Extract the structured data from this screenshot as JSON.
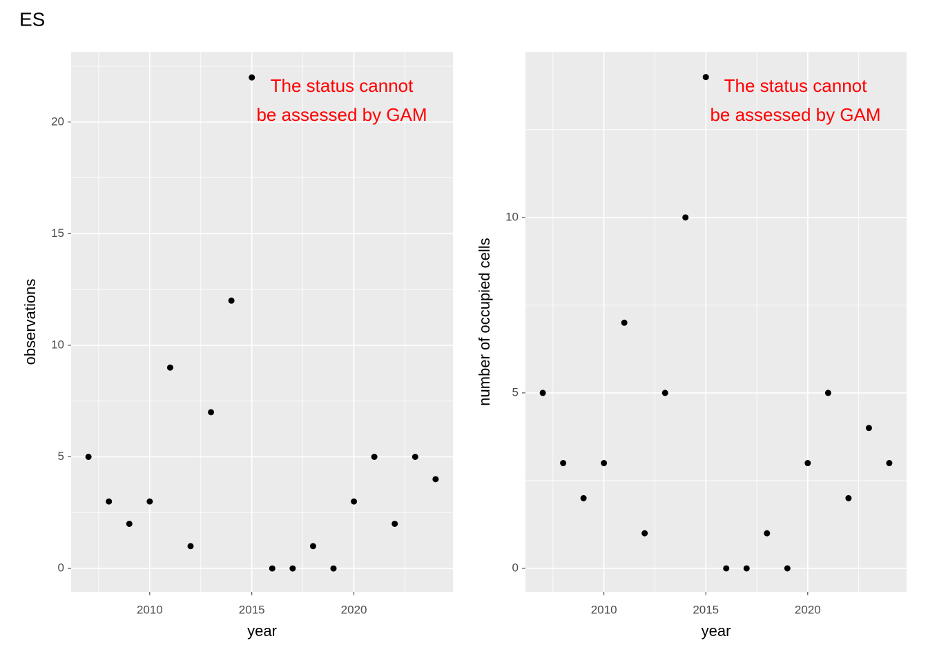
{
  "title": "ES",
  "chart_data": [
    {
      "type": "scatter",
      "x_label": "year",
      "y_label": "observations",
      "x": [
        2007,
        2008,
        2009,
        2010,
        2011,
        2012,
        2013,
        2014,
        2015,
        2016,
        2017,
        2018,
        2019,
        2020,
        2021,
        2022,
        2023,
        2024
      ],
      "values": [
        5,
        3,
        2,
        3,
        9,
        1,
        7,
        12,
        22,
        0,
        0,
        1,
        0,
        3,
        5,
        2,
        5,
        4
      ],
      "color": "#000000",
      "xlim": [
        2006.15,
        2024.85
      ],
      "xticks": [
        2010,
        2015,
        2020
      ],
      "ylim": [
        -1.05,
        23.15
      ],
      "yticks": [
        0,
        5,
        10,
        15,
        20
      ],
      "grid": true,
      "annotation": {
        "lines": [
          "The status cannot",
          "be assessed by GAM"
        ],
        "color": "#ff0000"
      }
    },
    {
      "type": "scatter",
      "x_label": "year",
      "y_label": "number of occupied cells",
      "x": [
        2007,
        2008,
        2009,
        2010,
        2011,
        2012,
        2013,
        2014,
        2015,
        2016,
        2017,
        2018,
        2019,
        2020,
        2021,
        2022,
        2023,
        2024
      ],
      "values": [
        5,
        3,
        2,
        3,
        7,
        1,
        5,
        10,
        14,
        0,
        0,
        1,
        0,
        3,
        5,
        2,
        4,
        3
      ],
      "color": "#000000",
      "xlim": [
        2006.15,
        2024.85
      ],
      "xticks": [
        2010,
        2015,
        2020
      ],
      "ylim": [
        -0.67,
        14.72
      ],
      "yticks": [
        0,
        5,
        10
      ],
      "grid": true,
      "annotation": {
        "lines": [
          "The status cannot",
          "be assessed by GAM"
        ],
        "color": "#ff0000"
      }
    }
  ]
}
